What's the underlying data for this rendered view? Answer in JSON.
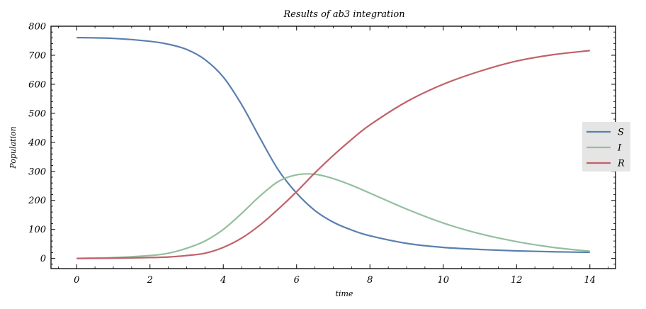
{
  "chart_data": {
    "type": "line",
    "title": "Results of ab3 integration",
    "xlabel": "time",
    "ylabel": "Population",
    "xlim": [
      -0.7,
      14.7
    ],
    "ylim": [
      -35,
      800
    ],
    "xticks": [
      0,
      2,
      4,
      6,
      8,
      10,
      12,
      14
    ],
    "yticks": [
      0,
      100,
      200,
      300,
      400,
      500,
      600,
      700,
      800
    ],
    "grid": false,
    "legend_position": "center-right",
    "series": [
      {
        "name": "S",
        "color": "#5a7fae",
        "x": [
          0,
          1,
          2,
          2.5,
          3,
          3.5,
          4,
          4.5,
          5,
          5.5,
          6,
          6.5,
          7,
          7.5,
          8,
          9,
          10,
          11,
          12,
          13,
          14
        ],
        "y": [
          761,
          758,
          748,
          738,
          720,
          685,
          625,
          530,
          415,
          305,
          225,
          165,
          125,
          98,
          78,
          52,
          38,
          31,
          26,
          23,
          21
        ]
      },
      {
        "name": "I",
        "color": "#93bf9e",
        "x": [
          0,
          1,
          2,
          2.5,
          3,
          3.5,
          4,
          4.5,
          5,
          5.5,
          6,
          6.5,
          7,
          7.5,
          8,
          9,
          10,
          11,
          12,
          13,
          14
        ],
        "y": [
          0,
          3,
          10,
          18,
          35,
          60,
          100,
          155,
          215,
          265,
          288,
          290,
          275,
          252,
          225,
          170,
          122,
          85,
          58,
          38,
          25
        ]
      },
      {
        "name": "R",
        "color": "#c1616a",
        "x": [
          0,
          1,
          2,
          2.5,
          3,
          3.5,
          4,
          4.5,
          5,
          5.5,
          6,
          6.5,
          7,
          7.5,
          8,
          9,
          10,
          11,
          12,
          13,
          14
        ],
        "y": [
          0,
          1,
          3,
          5,
          10,
          18,
          38,
          70,
          115,
          170,
          230,
          295,
          355,
          410,
          460,
          540,
          600,
          645,
          680,
          702,
          716
        ]
      }
    ]
  }
}
